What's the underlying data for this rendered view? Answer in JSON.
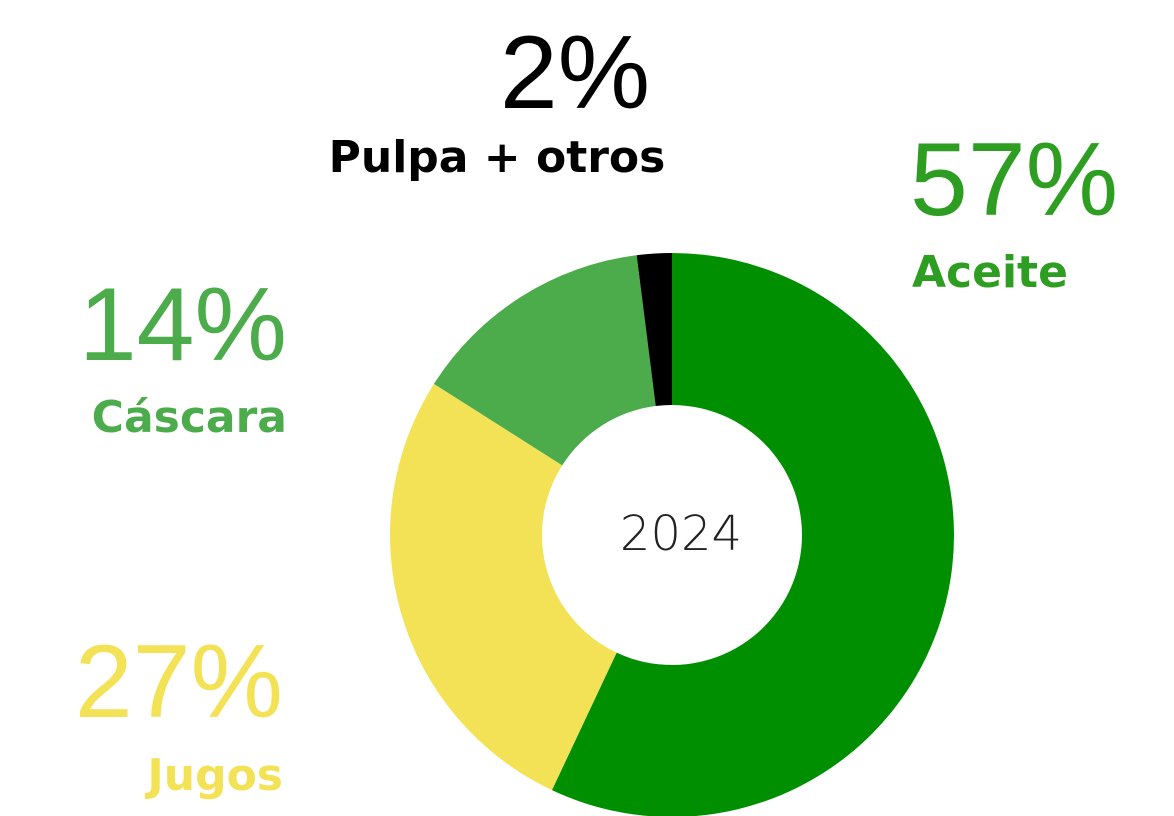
{
  "chart_data": {
    "type": "donut",
    "center_label": "2024",
    "categories": [
      "Aceite",
      "Jugos",
      "Cáscara",
      "Pulpa + otros"
    ],
    "values": [
      57,
      27,
      14,
      2
    ],
    "value_labels": [
      "57%",
      "27%",
      "14%",
      "2%"
    ],
    "colors": [
      "#008f00",
      "#f3e256",
      "#4cac4c",
      "#000000"
    ]
  }
}
